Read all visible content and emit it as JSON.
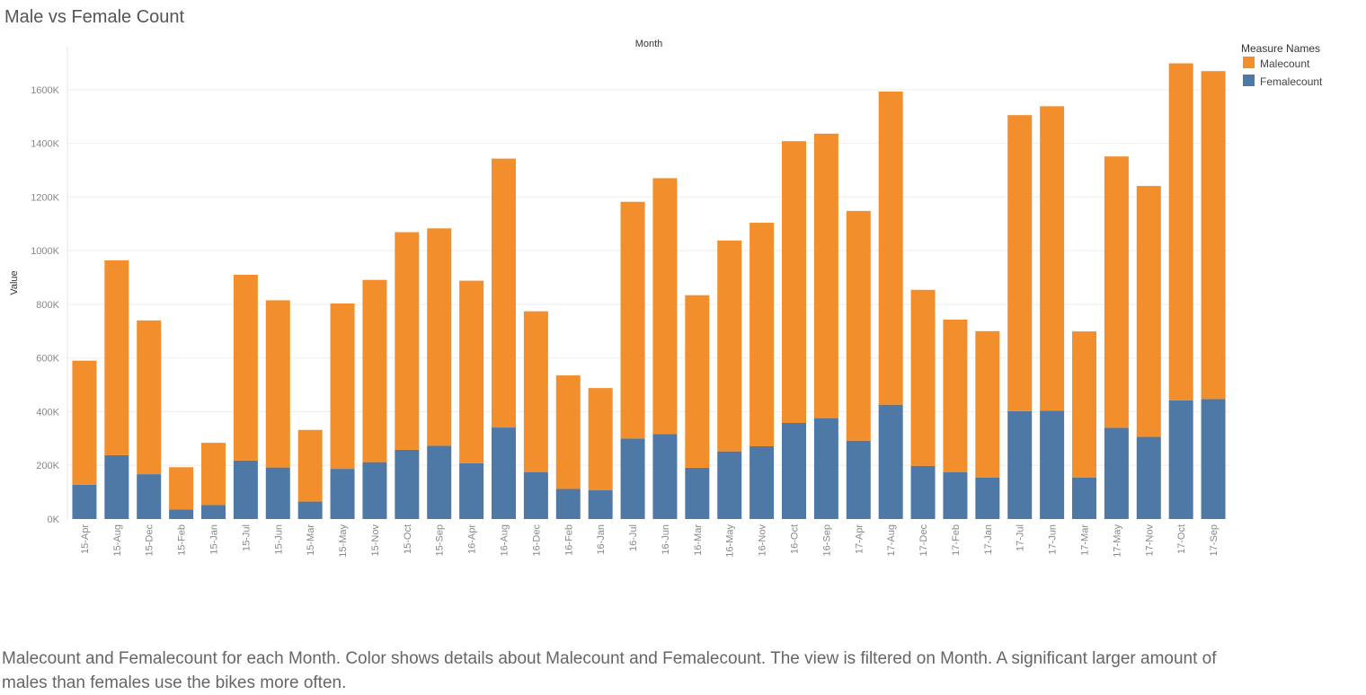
{
  "page": {
    "title": "Male vs Female Count",
    "caption": "Malecount and Femalecount for each Month.  Color shows details about Malecount and Femalecount. The view is filtered on Month. A significant larger amount of males than females use the bikes more often."
  },
  "chart_data": {
    "type": "bar",
    "stacked": true,
    "title": "Male vs Female Count",
    "xlabel": "Month",
    "ylabel": "Value",
    "ylim": [
      0,
      1760000
    ],
    "yticks": [
      0,
      200000,
      400000,
      600000,
      800000,
      1000000,
      1200000,
      1400000,
      1600000
    ],
    "ytick_labels": [
      "0K",
      "200K",
      "400K",
      "600K",
      "800K",
      "1000K",
      "1200K",
      "1400K",
      "1600K"
    ],
    "grid": true,
    "legend_title": "Measure Names",
    "legend_position": "top-right",
    "categories": [
      "15-Apr",
      "15-Aug",
      "15-Dec",
      "15-Feb",
      "15-Jan",
      "15-Jul",
      "15-Jun",
      "15-Mar",
      "15-May",
      "15-Nov",
      "15-Oct",
      "15-Sep",
      "16-Apr",
      "16-Aug",
      "16-Dec",
      "16-Feb",
      "16-Jan",
      "16-Jul",
      "16-Jun",
      "16-Mar",
      "16-May",
      "16-Nov",
      "16-Oct",
      "16-Sep",
      "17-Apr",
      "17-Aug",
      "17-Dec",
      "17-Feb",
      "17-Jan",
      "17-Jul",
      "17-Jun",
      "17-Mar",
      "17-May",
      "17-Nov",
      "17-Oct",
      "17-Sep"
    ],
    "series": [
      {
        "name": "Femalecount",
        "color": "#4e79a7",
        "values": [
          128000,
          238000,
          167000,
          35000,
          52000,
          218000,
          192000,
          65000,
          187000,
          212000,
          258000,
          273000,
          208000,
          341000,
          174000,
          112000,
          107000,
          300000,
          317000,
          191000,
          252000,
          271000,
          358000,
          376000,
          292000,
          426000,
          198000,
          174000,
          154000,
          402000,
          404000,
          154000,
          340000,
          306000,
          442000,
          447000
        ]
      },
      {
        "name": "Malecount",
        "color": "#f28e2b",
        "values": [
          462000,
          726000,
          573000,
          158000,
          232000,
          692000,
          623000,
          267000,
          616000,
          679000,
          811000,
          810000,
          680000,
          1002000,
          600000,
          423000,
          381000,
          882000,
          953000,
          643000,
          786000,
          833000,
          1050000,
          1060000,
          856000,
          1167000,
          656000,
          569000,
          546000,
          1103000,
          1134000,
          545000,
          1011000,
          935000,
          1256000,
          1222000
        ]
      }
    ]
  }
}
